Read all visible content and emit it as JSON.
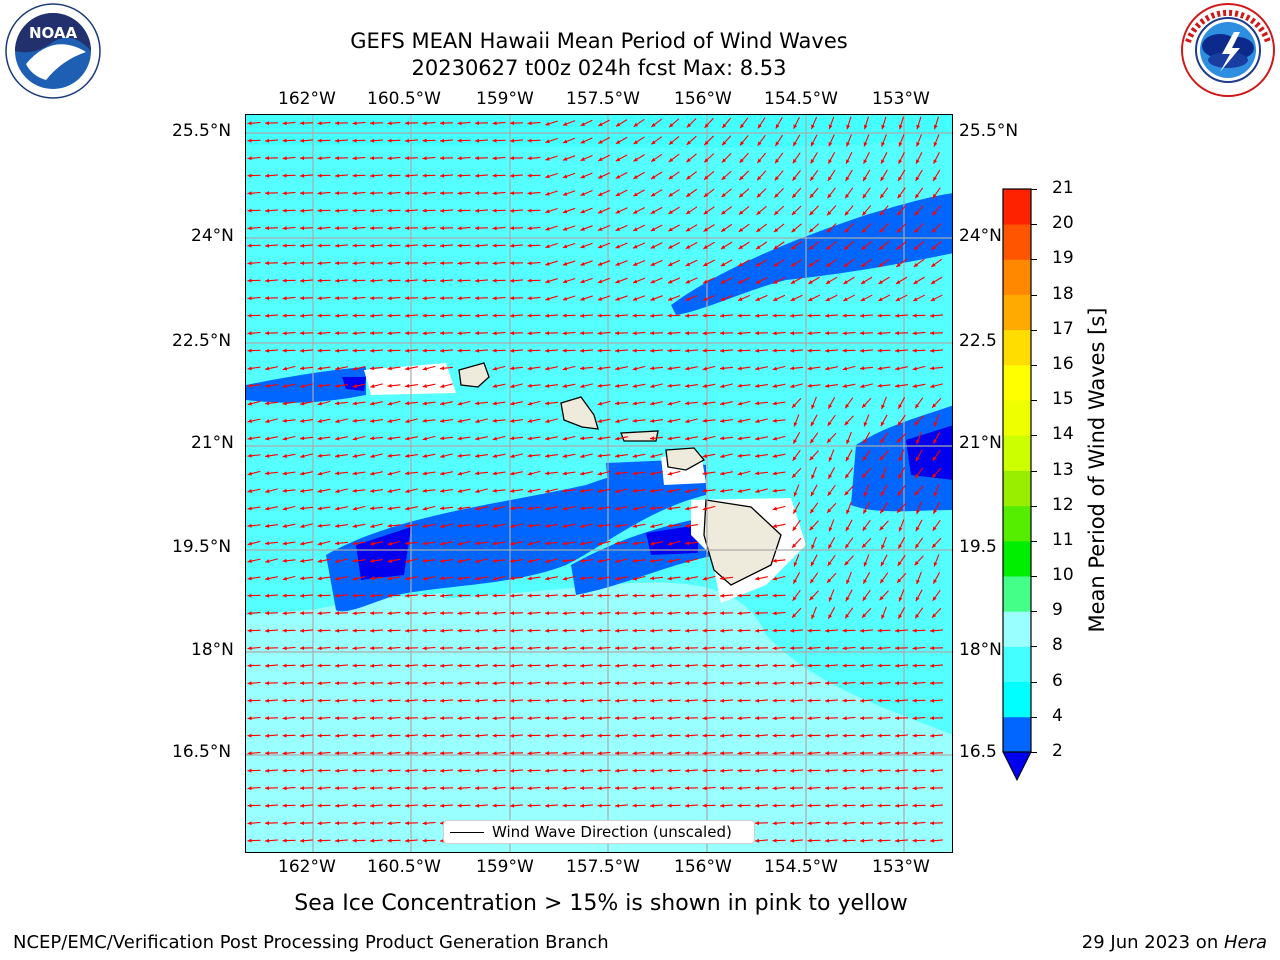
{
  "header": {
    "title_line1": "GEFS MEAN Hawaii Mean Period of Wind Waves",
    "title_line2": "20230627 t00z 024h fcst   Max: 8.53"
  },
  "logos": {
    "noaa_text": "NOAA",
    "noaa_ring_text": "NATIONAL OCEANIC AND ATMOSPHERIC ADMINISTRATION · U.S. DEPARTMENT OF COMMERCE",
    "nws_ring_text": "NATIONAL WEATHER SERVICE"
  },
  "map": {
    "lon_labels": [
      "162°W",
      "160.5°W",
      "159°W",
      "157.5°W",
      "156°W",
      "154.5°W",
      "153°W"
    ],
    "lat_labels": [
      "25.5°N",
      "24°N",
      "22.5°N",
      "21°N",
      "19.5°N",
      "18°N",
      "16.5°N"
    ],
    "lat_labels_right": [
      "25.5°N",
      "24°N",
      "22.5",
      "21°N",
      "19.5",
      "18°N",
      "16.5"
    ],
    "legend_label": "Wind Wave Direction (unscaled)",
    "arrow_color": "#ff0000",
    "land_color": "#efebdc"
  },
  "colorbar": {
    "label": "Mean Period of Wind Waves [s]",
    "ticks": [
      "2",
      "4",
      "6",
      "8",
      "9",
      "10",
      "11",
      "12",
      "13",
      "14",
      "15",
      "16",
      "17",
      "18",
      "19",
      "20",
      "21"
    ],
    "colors": [
      "#0066ff",
      "#00ffff",
      "#44ffff",
      "#99ffff",
      "#44ff88",
      "#00ee00",
      "#55ee00",
      "#99ee00",
      "#ccff00",
      "#eeff00",
      "#ffff00",
      "#ffdd00",
      "#ffaa00",
      "#ff8800",
      "#ff5500",
      "#ff2200"
    ],
    "under_color": "#0000ee"
  },
  "footer": {
    "sea_ice_note": "Sea Ice Concentration > 15% is shown in pink to yellow",
    "branch": "NCEP/EMC/Verification Post Processing Product Generation Branch",
    "date_prefix": "29 Jun 2023 on ",
    "machine": "Hera"
  }
}
